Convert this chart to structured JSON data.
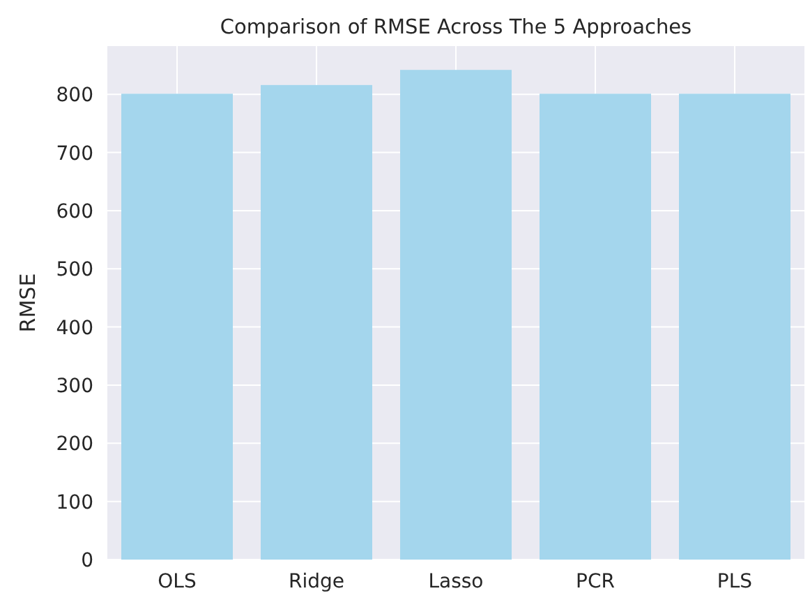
{
  "chart_data": {
    "type": "bar",
    "title": "Comparison of RMSE Across The 5 Approaches",
    "ylabel": "RMSE",
    "categories": [
      "OLS",
      "Ridge",
      "Lasso",
      "PCR",
      "PLS"
    ],
    "values": [
      801,
      816,
      842,
      801,
      801
    ],
    "color": "#a4d6ed",
    "ylim": [
      0,
      883
    ],
    "yticks": [
      0,
      100,
      200,
      300,
      400,
      500,
      600,
      700,
      800
    ],
    "grid": true
  }
}
